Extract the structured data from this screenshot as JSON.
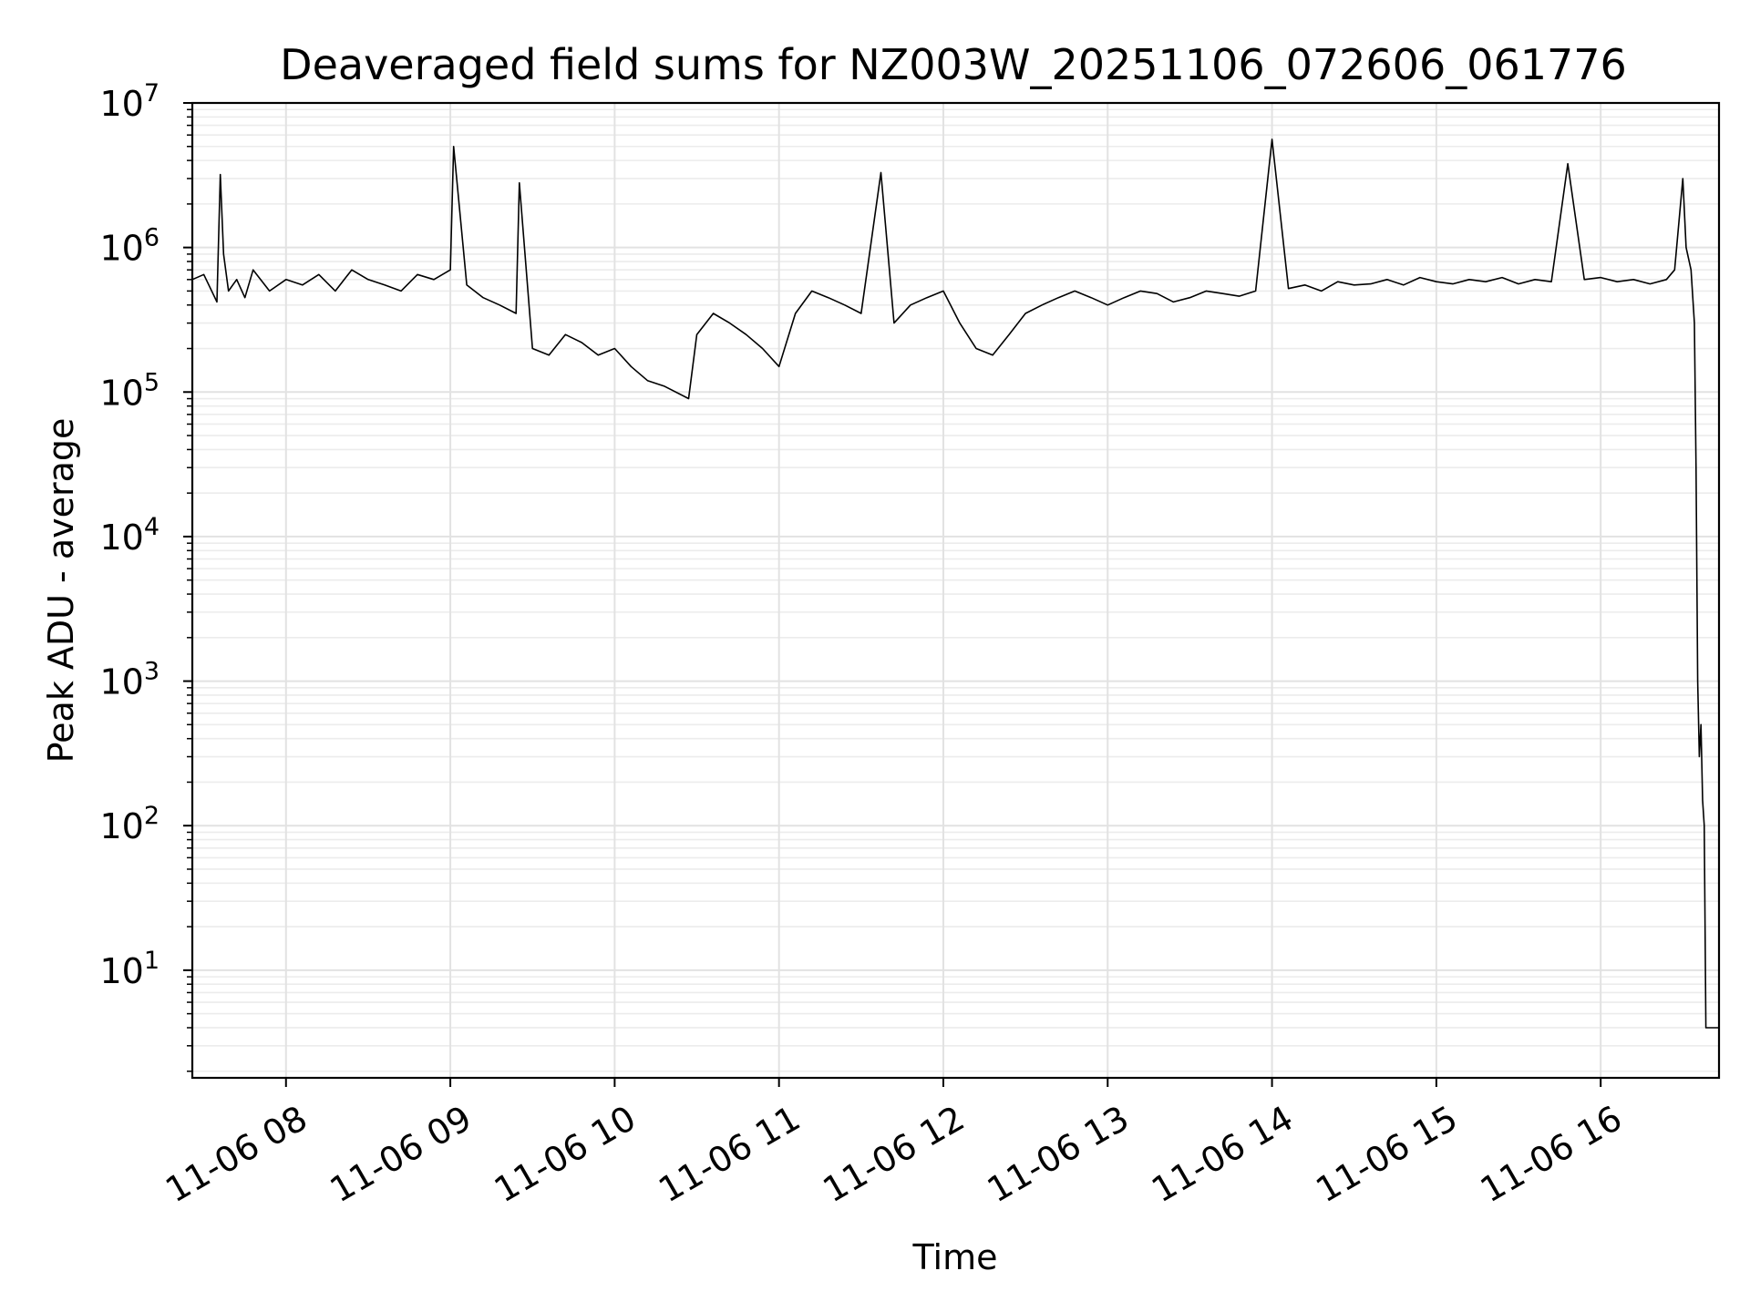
{
  "chart_data": {
    "type": "line",
    "title": "Deaveraged field sums for NZ003W_20251106_072606_061776",
    "xlabel": "Time",
    "ylabel": "Peak ADU - average",
    "yscale": "log",
    "ylim": [
      1.8,
      10000000
    ],
    "xlim_hours": [
      7.43,
      16.72
    ],
    "grid": true,
    "x_ticks": [
      {
        "label": "11-06 08",
        "hour": 8
      },
      {
        "label": "11-06 09",
        "hour": 9
      },
      {
        "label": "11-06 10",
        "hour": 10
      },
      {
        "label": "11-06 11",
        "hour": 11
      },
      {
        "label": "11-06 12",
        "hour": 12
      },
      {
        "label": "11-06 13",
        "hour": 13
      },
      {
        "label": "11-06 14",
        "hour": 14
      },
      {
        "label": "11-06 15",
        "hour": 15
      },
      {
        "label": "11-06 16",
        "hour": 16
      }
    ],
    "y_ticks": [
      {
        "base": "10",
        "exp": "1",
        "value": 10
      },
      {
        "base": "10",
        "exp": "2",
        "value": 100
      },
      {
        "base": "10",
        "exp": "3",
        "value": 1000
      },
      {
        "base": "10",
        "exp": "4",
        "value": 10000
      },
      {
        "base": "10",
        "exp": "5",
        "value": 100000
      },
      {
        "base": "10",
        "exp": "6",
        "value": 1000000
      },
      {
        "base": "10",
        "exp": "7",
        "value": 10000000
      }
    ],
    "series": [
      {
        "name": "Deaveraged field sum",
        "color": "#000000",
        "x_hours": [
          7.43,
          7.5,
          7.58,
          7.6,
          7.62,
          7.65,
          7.7,
          7.75,
          7.8,
          7.9,
          8.0,
          8.1,
          8.2,
          8.3,
          8.4,
          8.5,
          8.6,
          8.7,
          8.8,
          8.9,
          9.0,
          9.02,
          9.1,
          9.2,
          9.3,
          9.4,
          9.42,
          9.5,
          9.6,
          9.7,
          9.8,
          9.9,
          10.0,
          10.1,
          10.2,
          10.3,
          10.45,
          10.5,
          10.6,
          10.7,
          10.8,
          10.9,
          11.0,
          11.1,
          11.2,
          11.3,
          11.4,
          11.5,
          11.62,
          11.7,
          11.8,
          11.9,
          12.0,
          12.1,
          12.2,
          12.3,
          12.4,
          12.5,
          12.6,
          12.7,
          12.8,
          12.9,
          13.0,
          13.1,
          13.2,
          13.3,
          13.4,
          13.5,
          13.6,
          13.7,
          13.8,
          13.9,
          14.0,
          14.1,
          14.2,
          14.3,
          14.4,
          14.5,
          14.6,
          14.7,
          14.8,
          14.9,
          15.0,
          15.1,
          15.2,
          15.3,
          15.4,
          15.5,
          15.6,
          15.7,
          15.8,
          15.9,
          16.0,
          16.1,
          16.2,
          16.3,
          16.4,
          16.45,
          16.5,
          16.52,
          16.55,
          16.57,
          16.58,
          16.59,
          16.6,
          16.61,
          16.62,
          16.63,
          16.64,
          16.66,
          16.7,
          16.72
        ],
        "y": [
          600000,
          650000,
          420000,
          3200000,
          900000,
          500000,
          600000,
          450000,
          700000,
          500000,
          600000,
          550000,
          650000,
          500000,
          700000,
          600000,
          550000,
          500000,
          650000,
          600000,
          700000,
          5000000,
          550000,
          450000,
          400000,
          350000,
          2800000,
          200000,
          180000,
          250000,
          220000,
          180000,
          200000,
          150000,
          120000,
          110000,
          90000,
          250000,
          350000,
          300000,
          250000,
          200000,
          150000,
          350000,
          500000,
          450000,
          400000,
          350000,
          3300000,
          300000,
          400000,
          450000,
          500000,
          300000,
          200000,
          180000,
          250000,
          350000,
          400000,
          450000,
          500000,
          450000,
          400000,
          450000,
          500000,
          480000,
          420000,
          450000,
          500000,
          480000,
          460000,
          500000,
          5600000,
          520000,
          550000,
          500000,
          580000,
          550000,
          560000,
          600000,
          550000,
          620000,
          580000,
          560000,
          600000,
          580000,
          620000,
          560000,
          600000,
          580000,
          3800000,
          600000,
          620000,
          580000,
          600000,
          560000,
          600000,
          700000,
          3000000,
          1000000,
          700000,
          300000,
          30000,
          1000,
          300,
          500,
          150,
          100,
          4,
          4,
          4,
          4
        ]
      }
    ]
  }
}
